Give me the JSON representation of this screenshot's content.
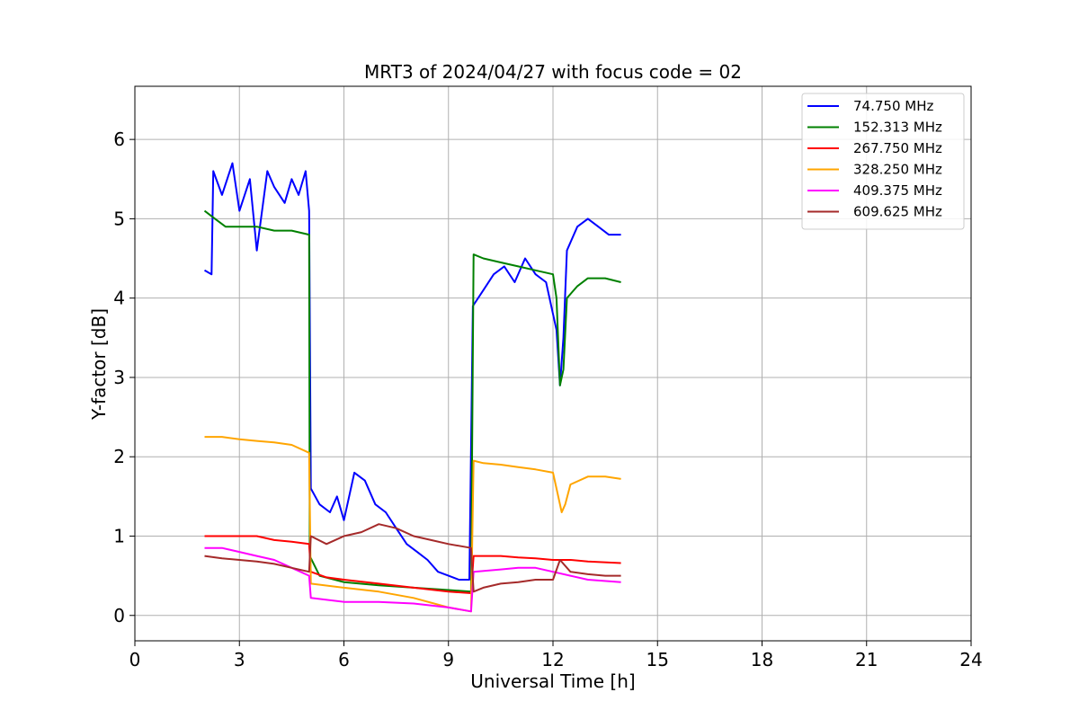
{
  "chart_data": {
    "type": "line",
    "title": "MRT3 of 2024/04/27 with focus code = 02",
    "xlabel": "Universal Time [h]",
    "ylabel": "Y-factor [dB]",
    "xlim": [
      0,
      24
    ],
    "ylim": [
      -0.32,
      6.67
    ],
    "xticks": [
      0,
      3,
      6,
      9,
      12,
      15,
      18,
      21,
      24
    ],
    "yticks": [
      0,
      1,
      2,
      3,
      4,
      5,
      6
    ],
    "grid": true,
    "legend_position": "top-right",
    "series": [
      {
        "name": " 74.750 MHz",
        "color": "#0000ff",
        "points": [
          [
            2.0,
            4.35
          ],
          [
            2.2,
            4.3
          ],
          [
            2.25,
            5.6
          ],
          [
            2.5,
            5.3
          ],
          [
            2.8,
            5.7
          ],
          [
            3.0,
            5.1
          ],
          [
            3.3,
            5.5
          ],
          [
            3.5,
            4.6
          ],
          [
            3.8,
            5.6
          ],
          [
            4.0,
            5.4
          ],
          [
            4.3,
            5.2
          ],
          [
            4.5,
            5.5
          ],
          [
            4.7,
            5.3
          ],
          [
            4.9,
            5.6
          ],
          [
            5.0,
            5.1
          ],
          [
            5.05,
            1.6
          ],
          [
            5.3,
            1.4
          ],
          [
            5.6,
            1.3
          ],
          [
            5.8,
            1.5
          ],
          [
            6.0,
            1.2
          ],
          [
            6.3,
            1.8
          ],
          [
            6.6,
            1.7
          ],
          [
            6.9,
            1.4
          ],
          [
            7.2,
            1.3
          ],
          [
            7.5,
            1.1
          ],
          [
            7.8,
            0.9
          ],
          [
            8.1,
            0.8
          ],
          [
            8.4,
            0.7
          ],
          [
            8.7,
            0.55
          ],
          [
            9.0,
            0.5
          ],
          [
            9.3,
            0.45
          ],
          [
            9.6,
            0.45
          ],
          [
            9.7,
            3.9
          ],
          [
            10.0,
            4.1
          ],
          [
            10.3,
            4.3
          ],
          [
            10.6,
            4.4
          ],
          [
            10.9,
            4.2
          ],
          [
            11.2,
            4.5
          ],
          [
            11.5,
            4.3
          ],
          [
            11.8,
            4.2
          ],
          [
            12.0,
            3.8
          ],
          [
            12.1,
            3.6
          ],
          [
            12.2,
            2.9
          ],
          [
            12.3,
            3.5
          ],
          [
            12.4,
            4.6
          ],
          [
            12.7,
            4.9
          ],
          [
            13.0,
            5.0
          ],
          [
            13.3,
            4.9
          ],
          [
            13.6,
            4.8
          ],
          [
            13.95,
            4.8
          ]
        ]
      },
      {
        "name": "152.313 MHz",
        "color": "#008000",
        "points": [
          [
            2.0,
            5.1
          ],
          [
            2.3,
            5.0
          ],
          [
            2.6,
            4.9
          ],
          [
            3.0,
            4.9
          ],
          [
            3.5,
            4.9
          ],
          [
            4.0,
            4.85
          ],
          [
            4.5,
            4.85
          ],
          [
            5.0,
            4.8
          ],
          [
            5.02,
            0.75
          ],
          [
            5.3,
            0.5
          ],
          [
            6.0,
            0.42
          ],
          [
            7.0,
            0.38
          ],
          [
            8.0,
            0.35
          ],
          [
            9.0,
            0.32
          ],
          [
            9.65,
            0.3
          ],
          [
            9.72,
            4.55
          ],
          [
            10.0,
            4.5
          ],
          [
            10.5,
            4.45
          ],
          [
            11.0,
            4.4
          ],
          [
            11.5,
            4.35
          ],
          [
            12.0,
            4.3
          ],
          [
            12.1,
            4.0
          ],
          [
            12.2,
            2.9
          ],
          [
            12.3,
            3.1
          ],
          [
            12.4,
            4.0
          ],
          [
            12.7,
            4.15
          ],
          [
            13.0,
            4.25
          ],
          [
            13.5,
            4.25
          ],
          [
            13.95,
            4.2
          ]
        ]
      },
      {
        "name": "267.750 MHz",
        "color": "#ff0000",
        "points": [
          [
            2.0,
            1.0
          ],
          [
            2.5,
            1.0
          ],
          [
            3.0,
            1.0
          ],
          [
            3.5,
            1.0
          ],
          [
            4.0,
            0.95
          ],
          [
            4.5,
            0.93
          ],
          [
            5.0,
            0.9
          ],
          [
            5.05,
            0.55
          ],
          [
            5.5,
            0.48
          ],
          [
            6.0,
            0.45
          ],
          [
            7.0,
            0.4
          ],
          [
            8.0,
            0.35
          ],
          [
            9.0,
            0.3
          ],
          [
            9.65,
            0.28
          ],
          [
            9.72,
            0.75
          ],
          [
            10.5,
            0.75
          ],
          [
            11.0,
            0.73
          ],
          [
            11.5,
            0.72
          ],
          [
            12.0,
            0.7
          ],
          [
            12.5,
            0.7
          ],
          [
            13.0,
            0.68
          ],
          [
            13.95,
            0.66
          ]
        ]
      },
      {
        "name": "328.250 MHz",
        "color": "#ffa500",
        "points": [
          [
            2.0,
            2.25
          ],
          [
            2.5,
            2.25
          ],
          [
            3.0,
            2.22
          ],
          [
            3.5,
            2.2
          ],
          [
            4.0,
            2.18
          ],
          [
            4.5,
            2.15
          ],
          [
            5.0,
            2.05
          ],
          [
            5.05,
            0.4
          ],
          [
            6.0,
            0.35
          ],
          [
            7.0,
            0.3
          ],
          [
            8.0,
            0.22
          ],
          [
            9.0,
            0.1
          ],
          [
            9.65,
            0.05
          ],
          [
            9.72,
            1.95
          ],
          [
            10.0,
            1.92
          ],
          [
            10.5,
            1.9
          ],
          [
            11.0,
            1.87
          ],
          [
            11.5,
            1.84
          ],
          [
            12.0,
            1.8
          ],
          [
            12.1,
            1.6
          ],
          [
            12.25,
            1.3
          ],
          [
            12.35,
            1.4
          ],
          [
            12.5,
            1.65
          ],
          [
            13.0,
            1.75
          ],
          [
            13.5,
            1.75
          ],
          [
            13.95,
            1.72
          ]
        ]
      },
      {
        "name": "409.375 MHz",
        "color": "#ff00ff",
        "points": [
          [
            2.0,
            0.85
          ],
          [
            2.5,
            0.85
          ],
          [
            3.0,
            0.8
          ],
          [
            3.5,
            0.75
          ],
          [
            4.0,
            0.7
          ],
          [
            4.5,
            0.6
          ],
          [
            5.0,
            0.5
          ],
          [
            5.05,
            0.22
          ],
          [
            6.0,
            0.17
          ],
          [
            7.0,
            0.17
          ],
          [
            8.0,
            0.15
          ],
          [
            9.0,
            0.1
          ],
          [
            9.65,
            0.05
          ],
          [
            9.72,
            0.55
          ],
          [
            10.5,
            0.58
          ],
          [
            11.0,
            0.6
          ],
          [
            11.5,
            0.6
          ],
          [
            12.0,
            0.55
          ],
          [
            12.5,
            0.5
          ],
          [
            13.0,
            0.45
          ],
          [
            13.95,
            0.42
          ]
        ]
      },
      {
        "name": "609.625 MHz",
        "color": "#a52a2a",
        "points": [
          [
            2.0,
            0.75
          ],
          [
            2.5,
            0.72
          ],
          [
            3.0,
            0.7
          ],
          [
            3.5,
            0.68
          ],
          [
            4.0,
            0.65
          ],
          [
            4.5,
            0.6
          ],
          [
            5.0,
            0.55
          ],
          [
            5.05,
            1.0
          ],
          [
            5.5,
            0.9
          ],
          [
            6.0,
            1.0
          ],
          [
            6.5,
            1.05
          ],
          [
            7.0,
            1.15
          ],
          [
            7.5,
            1.1
          ],
          [
            8.0,
            1.0
          ],
          [
            8.5,
            0.95
          ],
          [
            9.0,
            0.9
          ],
          [
            9.65,
            0.85
          ],
          [
            9.72,
            0.3
          ],
          [
            10.0,
            0.35
          ],
          [
            10.5,
            0.4
          ],
          [
            11.0,
            0.42
          ],
          [
            11.5,
            0.45
          ],
          [
            12.0,
            0.45
          ],
          [
            12.2,
            0.7
          ],
          [
            12.5,
            0.55
          ],
          [
            13.0,
            0.52
          ],
          [
            13.5,
            0.5
          ],
          [
            13.95,
            0.5
          ]
        ]
      }
    ]
  }
}
